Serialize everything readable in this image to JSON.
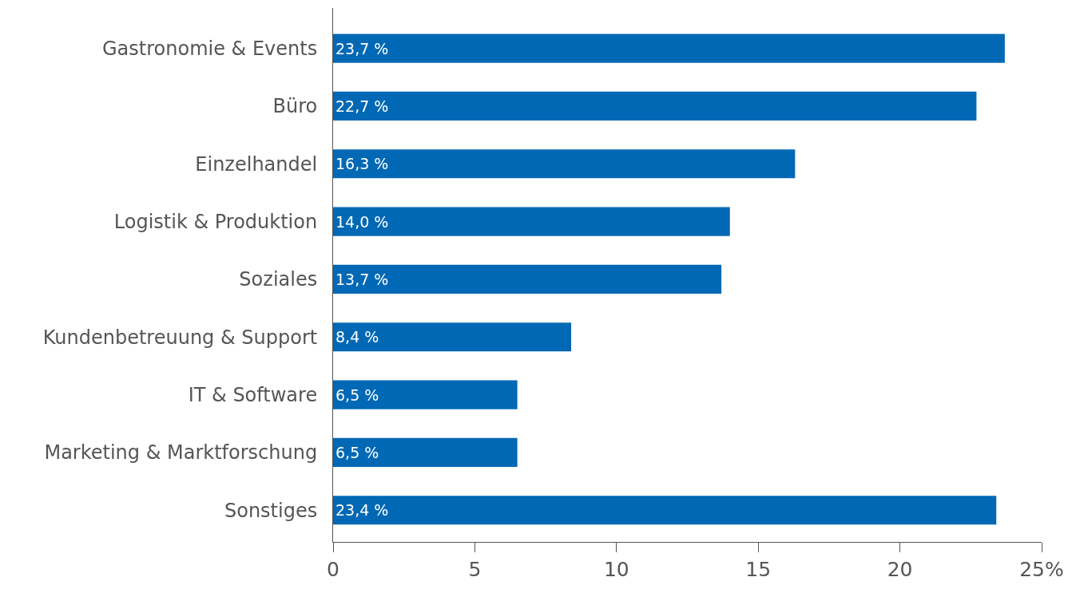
{
  "chart_data": {
    "type": "bar",
    "orientation": "horizontal",
    "categories": [
      "Gastronomie & Events",
      "Büro",
      "Einzelhandel",
      "Logistik & Produktion",
      "Soziales",
      "Kundenbetreuung & Support",
      "IT & Software",
      "Marketing & Marktforschung",
      "Sonstiges"
    ],
    "values": [
      23.7,
      22.7,
      16.3,
      14.0,
      13.7,
      8.4,
      6.5,
      6.5,
      23.4
    ],
    "value_labels": [
      "23,7 %",
      "22,7 %",
      "16,3 %",
      "14,0 %",
      "13,7 %",
      "8,4 %",
      "6,5 %",
      "6,5 %",
      "23,4 %"
    ],
    "color": "#0068b4",
    "xlim": [
      0,
      25
    ],
    "xticks": [
      0,
      5,
      10,
      15,
      20,
      {
        "value": 25,
        "label": "25%"
      }
    ]
  }
}
